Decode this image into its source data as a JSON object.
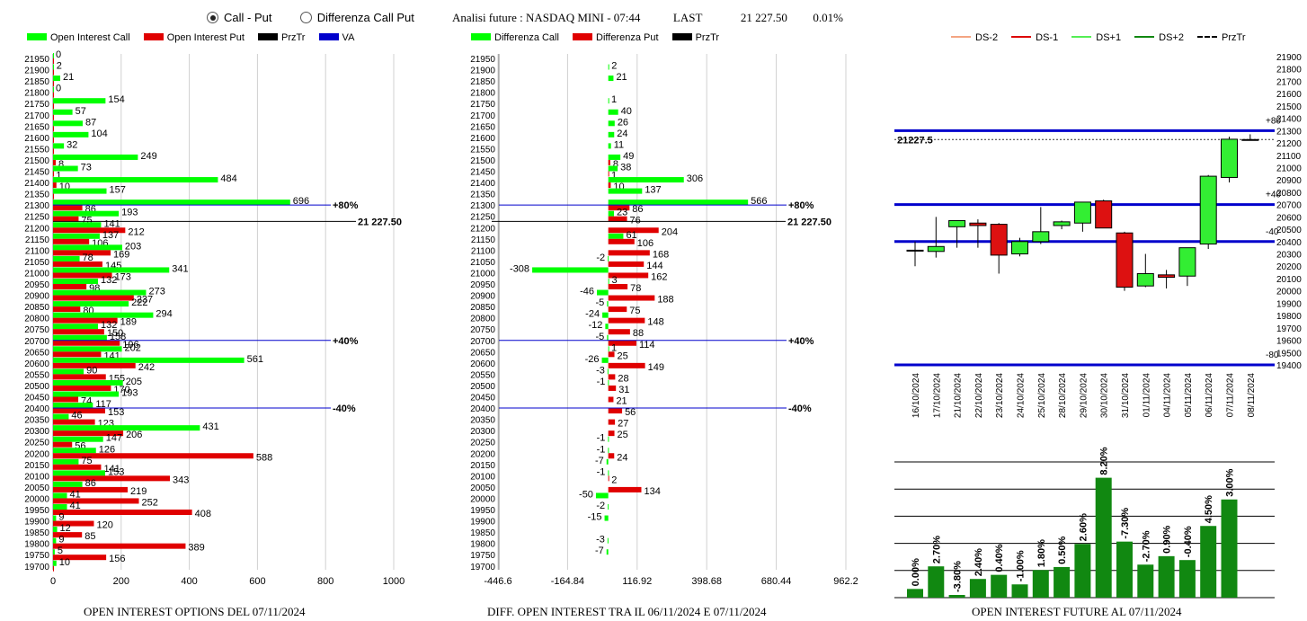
{
  "controls": {
    "mode_options": [
      {
        "label": "Call - Put",
        "selected": true
      },
      {
        "label": "Differenza Call Put",
        "selected": false
      }
    ]
  },
  "header": {
    "title": "Analisi future : NASDAQ MINI - 07:44",
    "last_label": "LAST",
    "last_value": "21 227.50",
    "change": "0.01%"
  },
  "colors": {
    "call": "#00ff00",
    "put": "#e00000",
    "price": "#000000",
    "va": "#0000cc",
    "ds_minus2": "#f4a582",
    "ds_minus1": "#dd0000",
    "ds_plus1": "#55ee55",
    "ds_plus2": "#118811",
    "future_bar": "#118811"
  },
  "chart_data": [
    {
      "id": "oi-options",
      "type": "bar",
      "orientation": "horizontal",
      "title": "OPEN INTEREST OPTIONS DEL 07/11/2024",
      "legend": [
        "Open Interest Call",
        "Open Interest Put",
        "PrzTr",
        "VA"
      ],
      "categories": [
        21950,
        21900,
        21850,
        21800,
        21750,
        21700,
        21650,
        21600,
        21550,
        21500,
        21450,
        21400,
        21350,
        21300,
        21250,
        21200,
        21150,
        21100,
        21050,
        21000,
        20950,
        20900,
        20850,
        20800,
        20750,
        20700,
        20650,
        20600,
        20550,
        20500,
        20450,
        20400,
        20350,
        20300,
        20250,
        20200,
        20150,
        20100,
        20050,
        20000,
        19950,
        19900,
        19850,
        19800,
        19750,
        19700
      ],
      "series": [
        {
          "name": "Open Interest Call",
          "values": [
            0,
            2,
            21,
            0,
            154,
            57,
            87,
            104,
            32,
            249,
            73,
            484,
            157,
            696,
            193,
            141,
            137,
            203,
            78,
            341,
            132,
            273,
            222,
            294,
            132,
            158,
            202,
            561,
            90,
            205,
            193,
            117,
            46,
            431,
            147,
            126,
            75,
            153,
            86,
            41,
            41,
            9,
            12,
            9,
            5,
            10
          ]
        },
        {
          "name": "Open Interest Put",
          "values": [
            0,
            0,
            0,
            0,
            0,
            0,
            0,
            0,
            0,
            8,
            1,
            10,
            0,
            86,
            75,
            212,
            106,
            169,
            145,
            173,
            98,
            237,
            80,
            189,
            150,
            196,
            141,
            242,
            155,
            170,
            74,
            153,
            123,
            206,
            56,
            588,
            141,
            343,
            219,
            252,
            408,
            120,
            85,
            389,
            156,
            0
          ]
        }
      ],
      "price_line": {
        "value": 21227.5,
        "label": "21 227.50"
      },
      "levels": [
        {
          "value": 21300,
          "label": "+80%"
        },
        {
          "value": 20700,
          "label": "+40%"
        },
        {
          "value": 20400,
          "label": "-40%"
        }
      ],
      "xlim": [
        0,
        1000
      ],
      "xticks": [
        0,
        200,
        400,
        600,
        800,
        1000
      ]
    },
    {
      "id": "oi-diff",
      "type": "bar",
      "orientation": "horizontal",
      "title": "DIFF. OPEN INTEREST TRA IL 06/11/2024 E 07/11/2024",
      "legend": [
        "Differenza Call",
        "Differenza Put",
        "PrzTr"
      ],
      "categories": [
        21950,
        21900,
        21850,
        21800,
        21750,
        21700,
        21650,
        21600,
        21550,
        21500,
        21450,
        21400,
        21350,
        21300,
        21250,
        21200,
        21150,
        21100,
        21050,
        21000,
        20950,
        20900,
        20850,
        20800,
        20750,
        20700,
        20650,
        20600,
        20550,
        20500,
        20450,
        20400,
        20350,
        20300,
        20250,
        20200,
        20150,
        20100,
        20050,
        20000,
        19950,
        19900,
        19850,
        19800,
        19750,
        19700
      ],
      "series": [
        {
          "name": "Differenza Call",
          "values": [
            null,
            2,
            21,
            null,
            1,
            40,
            26,
            24,
            11,
            49,
            38,
            306,
            137,
            566,
            23,
            null,
            61,
            null,
            -2,
            -308,
            3,
            -46,
            -5,
            -24,
            -12,
            -5,
            1,
            -26,
            -3,
            -1,
            null,
            null,
            null,
            null,
            -1,
            -1,
            -7,
            -1,
            null,
            -50,
            -2,
            -15,
            null,
            -3,
            -7,
            null
          ]
        },
        {
          "name": "Differenza Put",
          "values": [
            null,
            null,
            null,
            null,
            null,
            null,
            null,
            null,
            null,
            8,
            1,
            10,
            null,
            86,
            76,
            204,
            106,
            168,
            144,
            162,
            78,
            188,
            75,
            148,
            88,
            114,
            25,
            149,
            28,
            31,
            21,
            56,
            27,
            25,
            null,
            24,
            null,
            2,
            134,
            null,
            null,
            null,
            null,
            null,
            null,
            null
          ]
        }
      ],
      "price_line": {
        "value": 21227.5,
        "label": "21 227.50"
      },
      "levels": [
        {
          "value": 21300,
          "label": "+80%"
        },
        {
          "value": 20700,
          "label": "+40%"
        },
        {
          "value": 20400,
          "label": "-40%"
        }
      ],
      "xlim": [
        -446.6,
        962.2
      ],
      "xticks": [
        "-446.6",
        "-164.84",
        "116.92",
        "398.68",
        "680.44",
        "962.2"
      ]
    },
    {
      "id": "candles",
      "type": "candlestick",
      "legend": [
        "DS-2",
        "DS-1",
        "DS+1",
        "DS+2",
        "PrzTr"
      ],
      "price_label": "21227.5",
      "price": 21227.5,
      "ylim": [
        19400,
        21900
      ],
      "yticks": [
        19400,
        19500,
        19600,
        19700,
        19800,
        19900,
        20000,
        20100,
        20200,
        20300,
        20400,
        20500,
        20600,
        20700,
        20800,
        20900,
        21000,
        21100,
        21200,
        21300,
        21400,
        21500,
        21600,
        21700,
        21800,
        21900
      ],
      "levels": [
        {
          "value": 21300,
          "label": "+80"
        },
        {
          "value": 20700,
          "label": "+40"
        },
        {
          "value": 20400,
          "label": "-40"
        },
        {
          "value": 19400,
          "label": "-80"
        }
      ],
      "candles": [
        {
          "date": "16/10/2024",
          "o": 20330,
          "h": 20400,
          "l": 20200,
          "c": 20330
        },
        {
          "date": "17/10/2024",
          "o": 20320,
          "h": 20600,
          "l": 20270,
          "c": 20360
        },
        {
          "date": "21/10/2024",
          "o": 20520,
          "h": 20570,
          "l": 20350,
          "c": 20570
        },
        {
          "date": "22/10/2024",
          "o": 20550,
          "h": 20580,
          "l": 20350,
          "c": 20530
        },
        {
          "date": "23/10/2024",
          "o": 20540,
          "h": 20550,
          "l": 20140,
          "c": 20290
        },
        {
          "date": "24/10/2024",
          "o": 20300,
          "h": 20430,
          "l": 20280,
          "c": 20400
        },
        {
          "date": "25/10/2024",
          "o": 20400,
          "h": 20680,
          "l": 20380,
          "c": 20480
        },
        {
          "date": "28/10/2024",
          "o": 20530,
          "h": 20570,
          "l": 20500,
          "c": 20560
        },
        {
          "date": "29/10/2024",
          "o": 20550,
          "h": 20720,
          "l": 20480,
          "c": 20720
        },
        {
          "date": "30/10/2024",
          "o": 20730,
          "h": 20740,
          "l": 20520,
          "c": 20510
        },
        {
          "date": "31/10/2024",
          "o": 20470,
          "h": 20480,
          "l": 20000,
          "c": 20030
        },
        {
          "date": "01/11/2024",
          "o": 20040,
          "h": 20300,
          "l": 20030,
          "c": 20140
        },
        {
          "date": "04/11/2024",
          "o": 20130,
          "h": 20170,
          "l": 20020,
          "c": 20110
        },
        {
          "date": "05/11/2024",
          "o": 20120,
          "h": 20340,
          "l": 20040,
          "c": 20350
        },
        {
          "date": "06/11/2024",
          "o": 20380,
          "h": 20940,
          "l": 20340,
          "c": 20930
        },
        {
          "date": "07/11/2024",
          "o": 20920,
          "h": 21250,
          "l": 20880,
          "c": 21230
        },
        {
          "date": "08/11/2024",
          "o": 21227.5,
          "h": 21270,
          "l": 21220,
          "c": 21227.5
        }
      ]
    },
    {
      "id": "oi-future",
      "type": "bar",
      "title": "OPEN INTEREST FUTURE AL 07/11/2024",
      "series": [
        {
          "values": [
            0.0,
            2.7,
            -3.8,
            2.4,
            0.4,
            -1.0,
            1.8,
            0.5,
            2.6,
            8.2,
            -7.3,
            -2.7,
            0.9,
            -0.4,
            4.5,
            3.0
          ]
        }
      ],
      "labels": [
        "0.00%",
        "2.70%",
        "-3.80%",
        "2.40%",
        "0.40%",
        "-1.00%",
        "1.80%",
        "0.50%",
        "2.60%",
        "8.20%",
        "-7.30%",
        "-2.70%",
        "0.90%",
        "-0.40%",
        "4.50%",
        "3.00%"
      ],
      "heights": [
        4,
        14.4,
        0.3,
        8.6,
        10.5,
        6.1,
        12.7,
        14.1,
        24.7,
        55.2,
        25.8,
        15.2,
        19.1,
        17.3,
        33.0,
        45.2
      ],
      "height_max": 60
    }
  ]
}
